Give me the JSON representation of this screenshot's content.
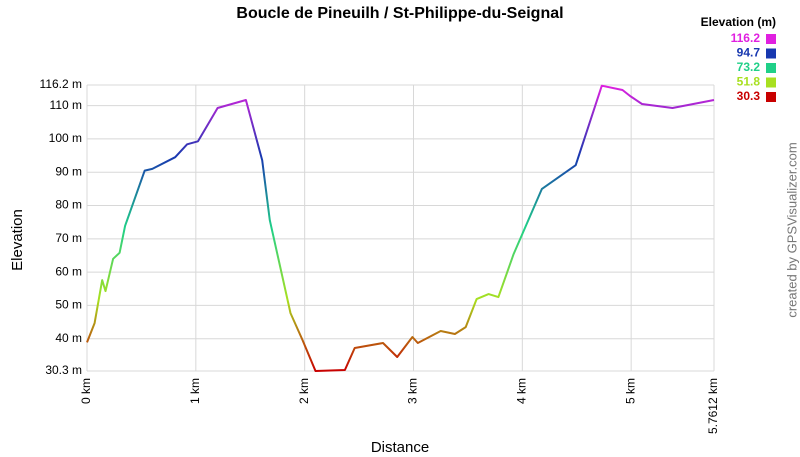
{
  "chart_data": {
    "type": "line",
    "title": "Boucle de Pineuilh / St-Philippe-du-Seignal",
    "x_label": "Distance",
    "y_label": "Elevation",
    "credit": "created by GPSVisualizer.com",
    "x": [
      0,
      0.07,
      0.14,
      0.17,
      0.24,
      0.3,
      0.35,
      0.53,
      0.6,
      0.81,
      0.92,
      1.02,
      1.2,
      1.46,
      1.61,
      1.68,
      1.87,
      1.98,
      2.1,
      2.37,
      2.46,
      2.72,
      2.85,
      2.99,
      3.04,
      3.25,
      3.38,
      3.48,
      3.58,
      3.69,
      3.78,
      3.92,
      4.18,
      4.49,
      4.73,
      4.92,
      4.99,
      5.1,
      5.38,
      5.7612
    ],
    "series": [
      {
        "values": [
          38.9,
          44.7,
          57.6,
          54.3,
          64,
          65.8,
          73.9,
          90.5,
          91,
          94.5,
          98.4,
          99.3,
          109.3,
          111.7,
          93.6,
          75.6,
          47.7,
          39.6,
          30.3,
          30.6,
          37.2,
          38.7,
          34.5,
          40.5,
          38.7,
          42.3,
          41.4,
          43.5,
          51.9,
          53.4,
          52.5,
          65.4,
          85,
          92.1,
          116,
          114.7,
          112.9,
          110.5,
          109.3,
          111.7
        ]
      }
    ],
    "xlim": [
      0,
      5.7612
    ],
    "xticks": [
      {
        "value": 0,
        "label": "0 km"
      },
      {
        "value": 1,
        "label": "1 km"
      },
      {
        "value": 2,
        "label": "2 km"
      },
      {
        "value": 3,
        "label": "3 km"
      },
      {
        "value": 4,
        "label": "4 km"
      },
      {
        "value": 5,
        "label": "5 km"
      },
      {
        "value": 5.7612,
        "label": "5.7612 km"
      }
    ],
    "ylim": [
      30.3,
      116.2
    ],
    "yticks": [
      {
        "value": 30.3,
        "label": "30.3 m"
      },
      {
        "value": 40,
        "label": "40 m"
      },
      {
        "value": 50,
        "label": "50 m"
      },
      {
        "value": 60,
        "label": "60 m"
      },
      {
        "value": 70,
        "label": "70 m"
      },
      {
        "value": 80,
        "label": "80 m"
      },
      {
        "value": 90,
        "label": "90 m"
      },
      {
        "value": 100,
        "label": "100 m"
      },
      {
        "value": 110,
        "label": "110 m"
      },
      {
        "value": 116.2,
        "label": "116.2 m"
      }
    ],
    "grid": true,
    "color_scale": {
      "title": "Elevation (m)",
      "entries": [
        {
          "value": 116.2,
          "color": "#e020e0"
        },
        {
          "value": 94.7,
          "color": "#1838b0"
        },
        {
          "value": 73.2,
          "color": "#20d088"
        },
        {
          "value": 51.8,
          "color": "#a8e020"
        },
        {
          "value": 30.3,
          "color": "#c80000"
        }
      ]
    }
  }
}
